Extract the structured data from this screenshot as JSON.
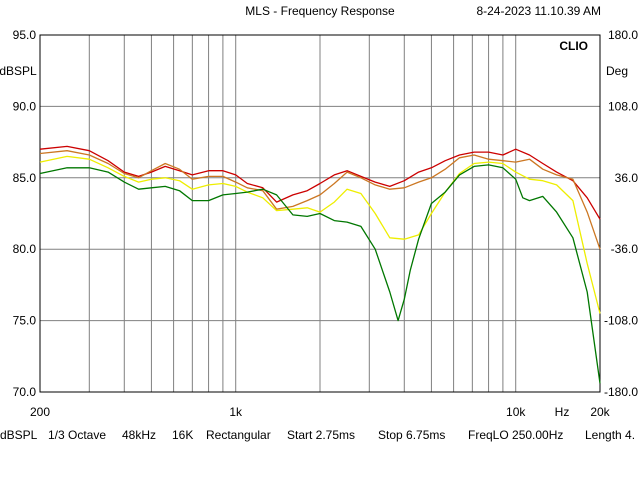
{
  "header": {
    "title": "MLS - Frequency Response",
    "timestamp": "8-24-2023 11.10.39 AM",
    "brand": "CLIO"
  },
  "footer": {
    "items": [
      "dBSPL",
      "1/3 Octave",
      "48kHz",
      "16K",
      "Rectangular",
      "Start 2.75ms",
      "Stop 6.75ms",
      "FreqLO 250.00Hz",
      "Length 4."
    ]
  },
  "chart_data": {
    "type": "line",
    "title": "MLS - Frequency Response",
    "xscale": "log",
    "xlim": [
      200,
      20000
    ],
    "x_ticks": [
      {
        "value": 200,
        "label": "200"
      },
      {
        "value": 1000,
        "label": "1k"
      },
      {
        "value": 10000,
        "label": "10k"
      },
      {
        "value": 20000,
        "label": "20k"
      }
    ],
    "x_unit_label": "Hz",
    "ylabel": "dBSPL",
    "ylim": [
      70,
      95
    ],
    "y_ticks": [
      "95.0",
      "90.0",
      "85.0",
      "80.0",
      "75.0",
      "70.0"
    ],
    "y2label": "Deg",
    "y2lim": [
      -180,
      180
    ],
    "y2_ticks": [
      "180.0",
      "108.0",
      "36.0",
      "-36.0",
      "-108.0",
      "-180.0"
    ],
    "grid": true,
    "series": [
      {
        "color": "#cc0000",
        "x": [
          200,
          250,
          300,
          350,
          400,
          450,
          500,
          560,
          630,
          700,
          800,
          900,
          1000,
          1100,
          1250,
          1400,
          1600,
          1800,
          2000,
          2250,
          2500,
          2800,
          3150,
          3550,
          4000,
          4500,
          5000,
          5600,
          6300,
          7100,
          8000,
          9000,
          10000,
          11200,
          12500,
          14000,
          16000,
          18000,
          20000
        ],
        "y": [
          87.0,
          87.2,
          86.9,
          86.2,
          85.4,
          85.1,
          85.4,
          85.8,
          85.5,
          85.2,
          85.5,
          85.5,
          85.2,
          84.6,
          84.3,
          83.3,
          83.8,
          84.1,
          84.6,
          85.2,
          85.5,
          85.1,
          84.7,
          84.4,
          84.8,
          85.4,
          85.7,
          86.2,
          86.6,
          86.8,
          86.8,
          86.6,
          87.0,
          86.6,
          86.0,
          85.4,
          84.8,
          83.6,
          82.1
        ]
      },
      {
        "color": "#cc7722",
        "x": [
          200,
          250,
          300,
          350,
          400,
          450,
          500,
          560,
          630,
          700,
          800,
          900,
          1000,
          1100,
          1250,
          1400,
          1600,
          1800,
          2000,
          2250,
          2500,
          2800,
          3150,
          3550,
          4000,
          4500,
          5000,
          5600,
          6300,
          7100,
          8000,
          9000,
          10000,
          11200,
          12500,
          14000,
          16000,
          18000,
          20000
        ],
        "y": [
          86.7,
          86.9,
          86.6,
          86.0,
          85.3,
          85.0,
          85.5,
          86.0,
          85.6,
          84.9,
          85.1,
          85.1,
          84.7,
          84.3,
          84.1,
          82.8,
          83.0,
          83.4,
          83.8,
          84.6,
          85.4,
          85.0,
          84.5,
          84.2,
          84.3,
          84.7,
          85.0,
          85.6,
          86.4,
          86.6,
          86.3,
          86.2,
          86.1,
          86.3,
          85.6,
          85.2,
          84.9,
          82.6,
          80.0
        ]
      },
      {
        "color": "#eeee00",
        "x": [
          200,
          250,
          300,
          350,
          400,
          450,
          500,
          560,
          630,
          700,
          800,
          900,
          1000,
          1100,
          1250,
          1400,
          1600,
          1800,
          2000,
          2250,
          2500,
          2800,
          3150,
          3550,
          4000,
          4500,
          5000,
          5600,
          6300,
          7100,
          8000,
          9000,
          10000,
          11200,
          12500,
          14000,
          16000,
          18000,
          20000
        ],
        "y": [
          86.1,
          86.5,
          86.3,
          85.7,
          85.1,
          84.7,
          84.9,
          85.0,
          84.8,
          84.2,
          84.5,
          84.6,
          84.4,
          84.0,
          83.6,
          82.7,
          82.8,
          82.9,
          82.6,
          83.3,
          84.2,
          83.9,
          82.5,
          80.8,
          80.7,
          81.0,
          82.5,
          84.0,
          85.3,
          86.0,
          86.1,
          86.0,
          85.4,
          84.9,
          84.8,
          84.5,
          83.4,
          79.0,
          75.5
        ]
      },
      {
        "color": "#007700",
        "x": [
          200,
          250,
          300,
          350,
          400,
          450,
          500,
          560,
          630,
          700,
          800,
          900,
          1000,
          1100,
          1250,
          1400,
          1600,
          1800,
          2000,
          2250,
          2500,
          2800,
          3150,
          3550,
          3800,
          4000,
          4200,
          4500,
          5000,
          5600,
          6300,
          7100,
          8000,
          9000,
          10000,
          10600,
          11200,
          12500,
          14000,
          16000,
          18000,
          20000
        ],
        "y": [
          85.3,
          85.7,
          85.7,
          85.4,
          84.7,
          84.2,
          84.3,
          84.4,
          84.1,
          83.4,
          83.4,
          83.8,
          83.9,
          84.0,
          84.2,
          83.8,
          82.4,
          82.3,
          82.5,
          82.0,
          81.9,
          81.6,
          80.0,
          77.0,
          75.0,
          76.5,
          78.5,
          80.7,
          83.2,
          84.0,
          85.2,
          85.8,
          85.9,
          85.7,
          84.9,
          83.6,
          83.4,
          83.7,
          82.6,
          80.8,
          77.0,
          70.6
        ]
      }
    ]
  }
}
